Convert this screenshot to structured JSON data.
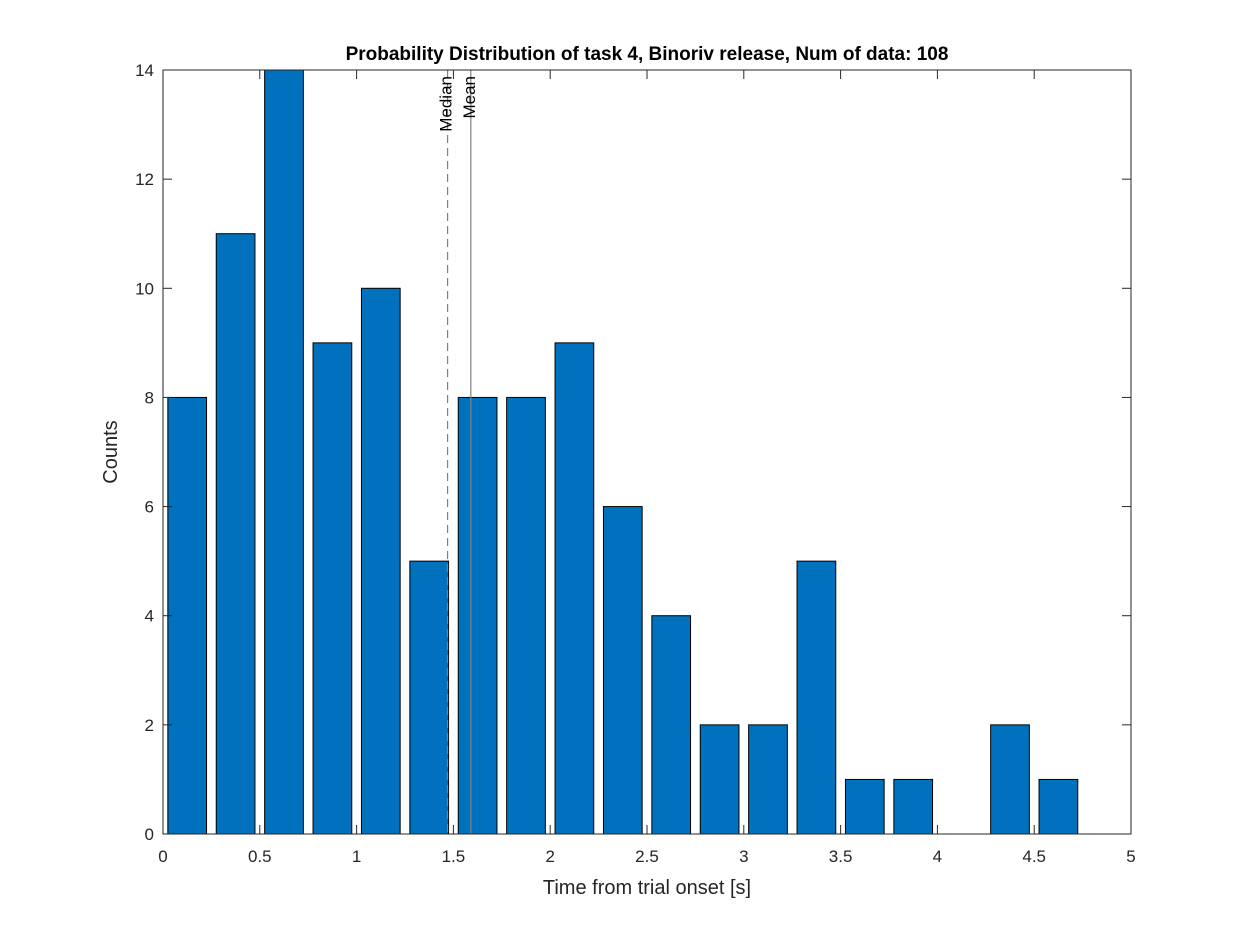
{
  "chart_data": {
    "type": "bar",
    "title": "Probability Distribution of task 4, Binoriv release, Num of data: 108",
    "xlabel": "Time from trial onset [s]",
    "ylabel": "Counts",
    "xlim": [
      0,
      5
    ],
    "ylim": [
      0,
      14
    ],
    "xticks": [
      0,
      0.5,
      1,
      1.5,
      2,
      2.5,
      3,
      3.5,
      4,
      4.5,
      5
    ],
    "xtick_labels": [
      "0",
      "0.5",
      "1",
      "1.5",
      "2",
      "2.5",
      "3",
      "3.5",
      "4",
      "4.5",
      "5"
    ],
    "yticks": [
      0,
      2,
      4,
      6,
      8,
      10,
      12,
      14
    ],
    "ytick_labels": [
      "0",
      "2",
      "4",
      "6",
      "8",
      "10",
      "12",
      "14"
    ],
    "grid": false,
    "bar_color": "#0072BD",
    "bar_width": 0.2,
    "x": [
      0.125,
      0.375,
      0.625,
      0.875,
      1.125,
      1.375,
      1.625,
      1.875,
      2.125,
      2.375,
      2.625,
      2.875,
      3.125,
      3.375,
      3.625,
      3.875,
      4.125,
      4.375,
      4.625
    ],
    "values": [
      8,
      11,
      14,
      9,
      10,
      5,
      8,
      8,
      9,
      6,
      4,
      2,
      2,
      5,
      1,
      1,
      0,
      2,
      1
    ],
    "reference_lines": [
      {
        "label": "Median",
        "x": 1.47,
        "style": "dashed",
        "color": "#808080"
      },
      {
        "label": "Mean",
        "x": 1.59,
        "style": "solid",
        "color": "#808080"
      }
    ]
  }
}
